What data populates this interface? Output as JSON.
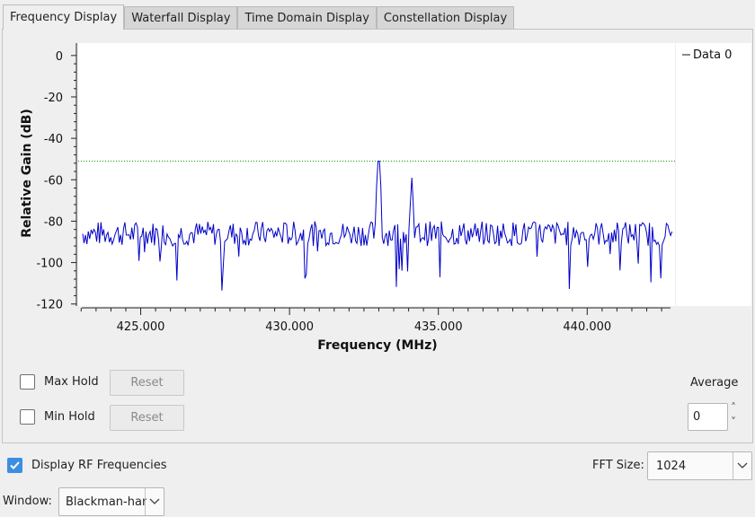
{
  "tabs": [
    {
      "label": "Frequency Display",
      "active": true
    },
    {
      "label": "Waterfall Display",
      "active": false
    },
    {
      "label": "Time Domain Display",
      "active": false
    },
    {
      "label": "Constellation Display",
      "active": false
    }
  ],
  "chart_data": {
    "type": "line",
    "title": "",
    "xlabel": "Frequency (MHz)",
    "ylabel": "Relative Gain (dB)",
    "xlim": [
      422.9,
      442.95
    ],
    "ylim": [
      -121,
      6
    ],
    "xticks": [
      "425.000",
      "430.000",
      "435.000",
      "440.000"
    ],
    "xtick_values": [
      425,
      430,
      435,
      440
    ],
    "yticks": [
      "0",
      "-20",
      "-40",
      "-60",
      "-80",
      "-100",
      "-120"
    ],
    "ytick_values": [
      0,
      -20,
      -40,
      -60,
      -80,
      -100,
      -120
    ],
    "grid": false,
    "legend": "top-right",
    "series": [
      {
        "name": "Data 0",
        "color": "#0000c8",
        "noise_floor_db": -86,
        "peaks": [
          {
            "x": 433.0,
            "y": -51
          },
          {
            "x": 434.12,
            "y": -59
          }
        ]
      }
    ],
    "threshold_line": {
      "y": -51,
      "color": "#00a000",
      "style": "dotted"
    }
  },
  "controls": {
    "max_hold_label": "Max Hold",
    "min_hold_label": "Min Hold",
    "reset_label": "Reset",
    "average_label": "Average",
    "average_value": "0",
    "spin_up": "˄",
    "spin_down": "˅"
  },
  "bottom": {
    "display_rf_label": "Display RF Frequencies",
    "display_rf_checked": true,
    "fft_size_label": "FFT Size:",
    "fft_size_value": "1024",
    "window_label": "Window:",
    "window_value": "Blackman-harri"
  }
}
